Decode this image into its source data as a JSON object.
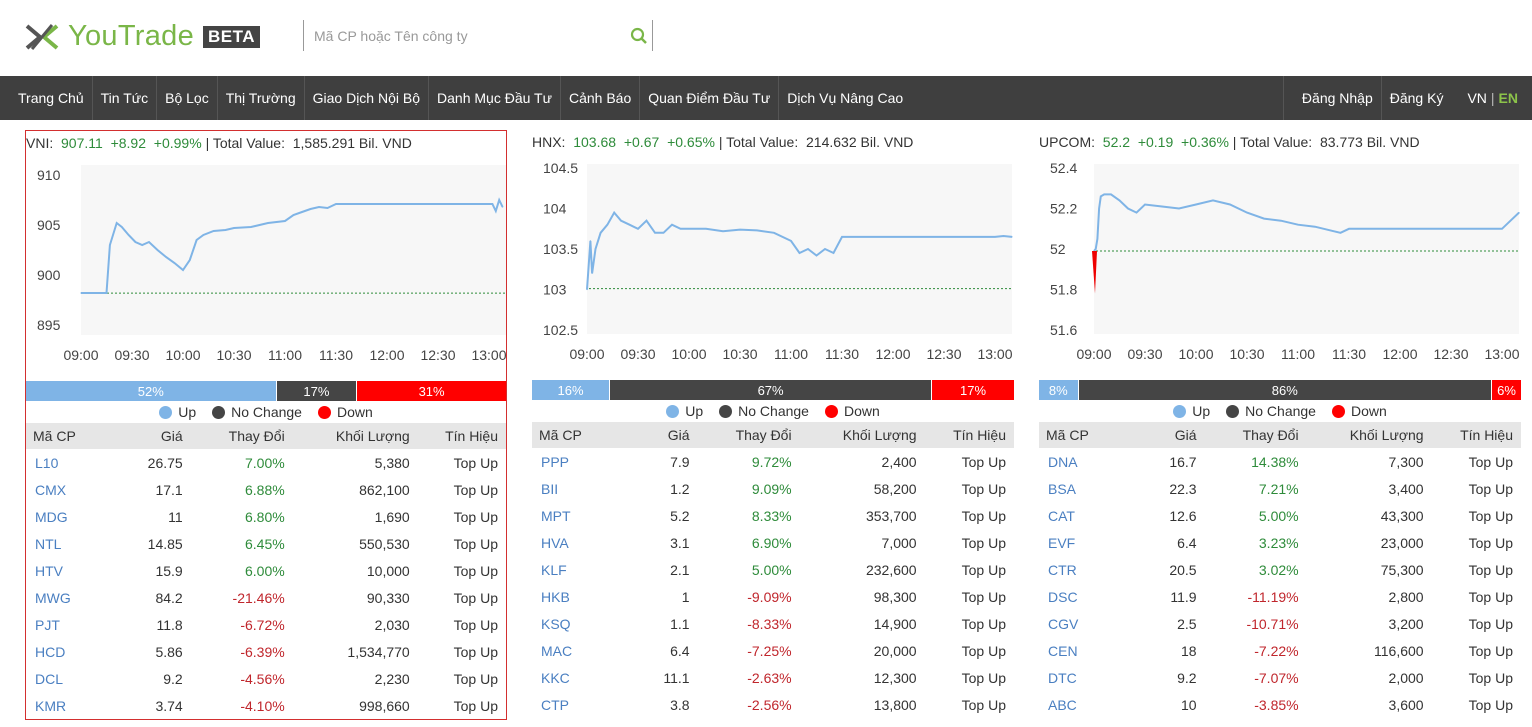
{
  "brand": {
    "name": "YouTrade",
    "badge": "BETA"
  },
  "search": {
    "placeholder": "Mã CP hoặc Tên công ty",
    "value": ""
  },
  "nav": {
    "left": [
      "Trang Chủ",
      "Tin Tức",
      "Bộ Lọc",
      "Thị Trường",
      "Giao Dịch Nội Bộ",
      "Danh Mục Đầu Tư",
      "Cảnh Báo",
      "Quan Điểm Đầu Tư",
      "Dịch Vụ Nâng Cao"
    ],
    "login": "Đăng Nhập",
    "register": "Đăng Ký",
    "lang_vn": "VN",
    "lang_sep": "|",
    "lang_en": "EN"
  },
  "colors": {
    "up": "#2e8b3a",
    "down": "#c0262c",
    "line": "#7fb4e6",
    "accent": "#7ab648",
    "nav_bg": "#3f3f3f"
  },
  "legend": {
    "up": "Up",
    "nochange": "No Change",
    "down": "Down"
  },
  "table_headers": [
    "Mã CP",
    "Giá",
    "Thay Đổi",
    "Khối Lượng",
    "Tín Hiệu"
  ],
  "panels": [
    {
      "index": "VNI:",
      "value": "907.11",
      "change": "+8.92",
      "pct": "+0.99%",
      "total_label": "| Total Value:",
      "total_value": "1,585.291 Bil. VND",
      "breadth": {
        "up": "52%",
        "nochange": "17%",
        "down": "31%",
        "up_frac": 0.52,
        "nochange_frac": 0.17,
        "down_frac": 0.31
      },
      "rows": [
        [
          "L10",
          "26.75",
          "7.00%",
          "5,380",
          "Top Up"
        ],
        [
          "CMX",
          "17.1",
          "6.88%",
          "862,100",
          "Top Up"
        ],
        [
          "MDG",
          "11",
          "6.80%",
          "1,690",
          "Top Up"
        ],
        [
          "NTL",
          "14.85",
          "6.45%",
          "550,530",
          "Top Up"
        ],
        [
          "HTV",
          "15.9",
          "6.00%",
          "10,000",
          "Top Up"
        ],
        [
          "MWG",
          "84.2",
          "-21.46%",
          "90,330",
          "Top Up"
        ],
        [
          "PJT",
          "11.8",
          "-6.72%",
          "2,030",
          "Top Up"
        ],
        [
          "HCD",
          "5.86",
          "-6.39%",
          "1,534,770",
          "Top Up"
        ],
        [
          "DCL",
          "9.2",
          "-4.56%",
          "2,230",
          "Top Up"
        ],
        [
          "KMR",
          "3.74",
          "-4.10%",
          "998,660",
          "Top Up"
        ]
      ]
    },
    {
      "index": "HNX:",
      "value": "103.68",
      "change": "+0.67",
      "pct": "+0.65%",
      "total_label": "| Total Value:",
      "total_value": "214.632 Bil. VND",
      "breadth": {
        "up": "16%",
        "nochange": "67%",
        "down": "17%",
        "up_frac": 0.16,
        "nochange_frac": 0.67,
        "down_frac": 0.17
      },
      "rows": [
        [
          "PPP",
          "7.9",
          "9.72%",
          "2,400",
          "Top Up"
        ],
        [
          "BII",
          "1.2",
          "9.09%",
          "58,200",
          "Top Up"
        ],
        [
          "MPT",
          "5.2",
          "8.33%",
          "353,700",
          "Top Up"
        ],
        [
          "HVA",
          "3.1",
          "6.90%",
          "7,000",
          "Top Up"
        ],
        [
          "KLF",
          "2.1",
          "5.00%",
          "232,600",
          "Top Up"
        ],
        [
          "HKB",
          "1",
          "-9.09%",
          "98,300",
          "Top Up"
        ],
        [
          "KSQ",
          "1.1",
          "-8.33%",
          "14,900",
          "Top Up"
        ],
        [
          "MAC",
          "6.4",
          "-7.25%",
          "20,000",
          "Top Up"
        ],
        [
          "KKC",
          "11.1",
          "-2.63%",
          "12,300",
          "Top Up"
        ],
        [
          "CTP",
          "3.8",
          "-2.56%",
          "13,800",
          "Top Up"
        ]
      ]
    },
    {
      "index": "UPCOM:",
      "value": "52.2",
      "change": "+0.19",
      "pct": "+0.36%",
      "total_label": "| Total Value:",
      "total_value": "83.773 Bil. VND",
      "breadth": {
        "up": "8%",
        "nochange": "86%",
        "down": "6%",
        "up_frac": 0.08,
        "nochange_frac": 0.86,
        "down_frac": 0.06
      },
      "rows": [
        [
          "DNA",
          "16.7",
          "14.38%",
          "7,300",
          "Top Up"
        ],
        [
          "BSA",
          "22.3",
          "7.21%",
          "3,400",
          "Top Up"
        ],
        [
          "CAT",
          "12.6",
          "5.00%",
          "43,300",
          "Top Up"
        ],
        [
          "EVF",
          "6.4",
          "3.23%",
          "23,000",
          "Top Up"
        ],
        [
          "CTR",
          "20.5",
          "3.02%",
          "75,300",
          "Top Up"
        ],
        [
          "DSC",
          "11.9",
          "-11.19%",
          "2,800",
          "Top Up"
        ],
        [
          "CGV",
          "2.5",
          "-10.71%",
          "3,200",
          "Top Up"
        ],
        [
          "CEN",
          "18",
          "-7.22%",
          "116,600",
          "Top Up"
        ],
        [
          "DTC",
          "9.2",
          "-7.07%",
          "2,000",
          "Top Up"
        ],
        [
          "ABC",
          "10",
          "-3.85%",
          "3,600",
          "Top Up"
        ]
      ]
    }
  ],
  "chart_data": [
    {
      "type": "line",
      "title": "VNI",
      "x_ticks": [
        "09:00",
        "09:30",
        "10:00",
        "10:30",
        "11:00",
        "11:30",
        "12:00",
        "12:30",
        "13:00"
      ],
      "y_ticks": [
        "895",
        "900",
        "905",
        "910"
      ],
      "ylim": [
        894,
        911
      ],
      "reference": 898.19,
      "x": [
        "09:00",
        "09:15",
        "09:17",
        "09:21",
        "09:24",
        "09:28",
        "09:32",
        "09:36",
        "09:40",
        "09:45",
        "09:50",
        "09:55",
        "10:00",
        "10:04",
        "10:08",
        "10:12",
        "10:18",
        "10:25",
        "10:30",
        "10:40",
        "10:50",
        "11:00",
        "11:05",
        "11:10",
        "11:15",
        "11:20",
        "11:25",
        "11:30",
        "11:31",
        "12:00",
        "12:30",
        "13:00",
        "13:02",
        "13:04",
        "13:06",
        "13:08"
      ],
      "y": [
        898.2,
        898.2,
        903.0,
        905.2,
        904.8,
        904.0,
        903.3,
        903.0,
        903.3,
        902.5,
        901.8,
        901.2,
        900.5,
        901.5,
        903.5,
        904.0,
        904.4,
        904.5,
        904.7,
        904.8,
        905.2,
        905.4,
        906.0,
        906.3,
        906.6,
        906.8,
        906.7,
        907.1,
        907.1,
        907.1,
        907.1,
        907.1,
        907.1,
        906.4,
        907.5,
        906.8
      ]
    },
    {
      "type": "line",
      "title": "HNX",
      "x_ticks": [
        "09:00",
        "09:30",
        "10:00",
        "10:30",
        "11:00",
        "11:30",
        "12:00",
        "12:30",
        "13:00"
      ],
      "y_ticks": [
        "102.5",
        "103",
        "103.5",
        "104",
        "104.5"
      ],
      "ylim": [
        102.45,
        104.55
      ],
      "reference": 103.01,
      "x": [
        "09:00",
        "09:01",
        "09:02",
        "09:03",
        "09:05",
        "09:08",
        "09:12",
        "09:16",
        "09:20",
        "09:25",
        "09:30",
        "09:35",
        "09:40",
        "09:45",
        "09:50",
        "09:55",
        "10:00",
        "10:10",
        "10:20",
        "10:30",
        "10:40",
        "10:50",
        "11:00",
        "11:05",
        "11:10",
        "11:15",
        "11:20",
        "11:25",
        "11:30",
        "11:35",
        "11:40",
        "12:00",
        "12:30",
        "13:00",
        "13:05",
        "13:10"
      ],
      "y": [
        103.0,
        103.3,
        103.6,
        103.2,
        103.5,
        103.7,
        103.8,
        103.95,
        103.85,
        103.8,
        103.75,
        103.85,
        103.7,
        103.7,
        103.8,
        103.75,
        103.75,
        103.75,
        103.72,
        103.74,
        103.73,
        103.7,
        103.6,
        103.45,
        103.5,
        103.42,
        103.5,
        103.45,
        103.65,
        103.65,
        103.65,
        103.65,
        103.65,
        103.65,
        103.66,
        103.65
      ]
    },
    {
      "type": "line",
      "title": "UPCOM",
      "x_ticks": [
        "09:00",
        "09:30",
        "10:00",
        "10:30",
        "11:00",
        "11:30",
        "12:00",
        "12:30",
        "13:00"
      ],
      "y_ticks": [
        "51.6",
        "51.8",
        "52",
        "52.2",
        "52.4"
      ],
      "ylim": [
        51.58,
        52.42
      ],
      "reference": 51.99,
      "x": [
        "09:00",
        "09:01",
        "09:02",
        "09:03",
        "09:04",
        "09:06",
        "09:10",
        "09:15",
        "09:20",
        "09:25",
        "09:30",
        "09:40",
        "09:50",
        "10:00",
        "10:10",
        "10:20",
        "10:30",
        "10:40",
        "10:50",
        "11:00",
        "11:10",
        "11:20",
        "11:25",
        "11:30",
        "11:35",
        "12:00",
        "12:30",
        "13:00",
        "13:05",
        "13:10"
      ],
      "y": [
        51.99,
        52.0,
        52.05,
        52.2,
        52.26,
        52.27,
        52.27,
        52.24,
        52.2,
        52.18,
        52.22,
        52.21,
        52.2,
        52.22,
        52.24,
        52.22,
        52.18,
        52.15,
        52.14,
        52.12,
        52.11,
        52.09,
        52.08,
        52.1,
        52.1,
        52.1,
        52.1,
        52.1,
        52.14,
        52.18
      ]
    }
  ]
}
